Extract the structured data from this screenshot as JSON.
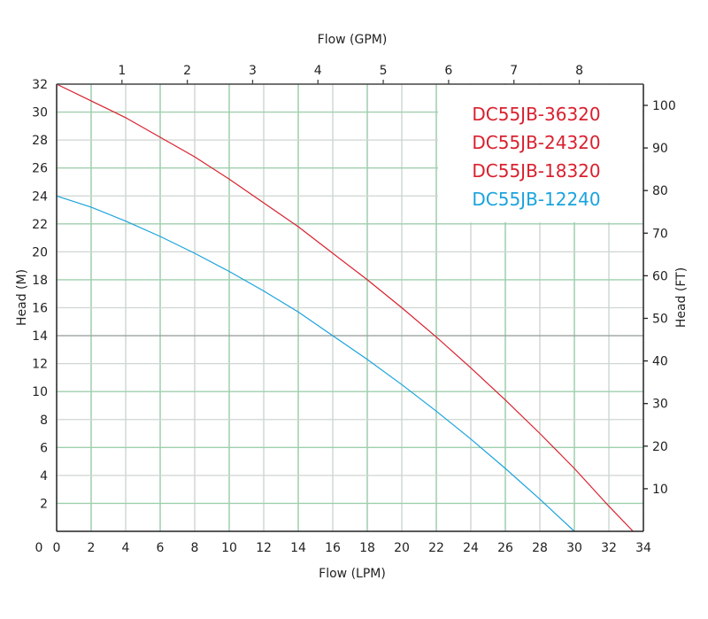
{
  "chart_data": {
    "type": "line",
    "xlabel_bottom": "Flow (LPM)",
    "xlabel_top": "Flow (GPM)",
    "ylabel_left": "Head (M)",
    "ylabel_right": "Head (FT)",
    "xlim": [
      0,
      34
    ],
    "ylim": [
      0,
      32
    ],
    "x_ticks": [
      0,
      2,
      4,
      6,
      8,
      10,
      12,
      14,
      16,
      18,
      20,
      22,
      24,
      26,
      28,
      30,
      32,
      34
    ],
    "y_ticks": [
      2,
      4,
      6,
      8,
      10,
      12,
      14,
      16,
      18,
      20,
      22,
      24,
      26,
      28,
      30,
      32
    ],
    "x_top_ticks": [
      1,
      2,
      3,
      4,
      5,
      6,
      7,
      8
    ],
    "y_right_ticks": [
      10,
      20,
      30,
      40,
      50,
      60,
      70,
      80,
      90,
      100
    ],
    "grid": true,
    "legend_placement": "top-right",
    "legend": [
      {
        "label": "DC55JB-36320",
        "color": "#d9202e"
      },
      {
        "label": "DC55JB-24320",
        "color": "#d9202e"
      },
      {
        "label": "DC55JB-18320",
        "color": "#d9202e"
      },
      {
        "label": "DC55JB-12240",
        "color": "#1aa3dd"
      }
    ],
    "series": [
      {
        "color": "#d9202e",
        "x": [
          0,
          2,
          4,
          6,
          8,
          10,
          12,
          14,
          16,
          18,
          20,
          22,
          24,
          26,
          28,
          30,
          32,
          33.4
        ],
        "y": [
          32,
          30.8,
          29.6,
          28.2,
          26.8,
          25.2,
          23.5,
          21.8,
          19.9,
          18,
          16,
          13.9,
          11.7,
          9.4,
          7,
          4.5,
          1.8,
          0
        ]
      },
      {
        "color": "#1aa3dd",
        "x": [
          0,
          2,
          4,
          6,
          8,
          10,
          12,
          14,
          16,
          18,
          20,
          22,
          24,
          26,
          28,
          30
        ],
        "y": [
          24,
          23.2,
          22.2,
          21.1,
          19.9,
          18.6,
          17.2,
          15.7,
          14,
          12.3,
          10.5,
          8.6,
          6.6,
          4.5,
          2.3,
          0
        ]
      }
    ]
  }
}
